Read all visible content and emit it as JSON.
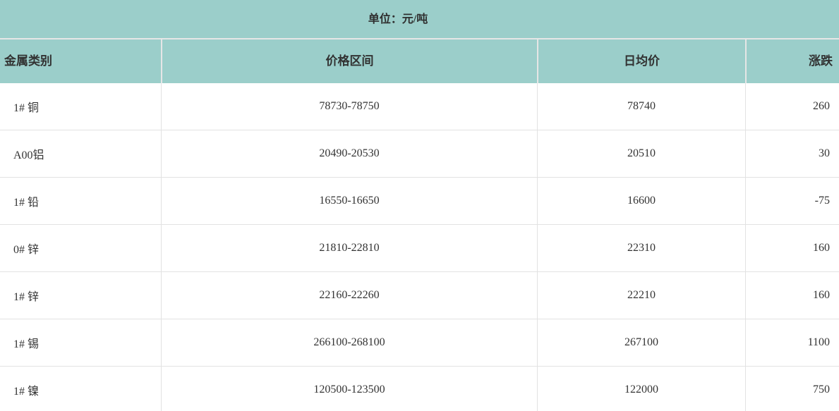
{
  "chart_data": {
    "type": "table",
    "title": "单位：元/吨",
    "columns": [
      "金属类别",
      "价格区间",
      "日均价",
      "涨跌"
    ],
    "rows": [
      [
        "1# 铜",
        "78730-78750",
        "78740",
        "260"
      ],
      [
        "A00铝",
        "20490-20530",
        "20510",
        "30"
      ],
      [
        "1# 铅",
        "16550-16650",
        "16600",
        "-75"
      ],
      [
        "0# 锌",
        "21810-22810",
        "22310",
        "160"
      ],
      [
        "1# 锌",
        "22160-22260",
        "22210",
        "160"
      ],
      [
        "1# 锡",
        "266100-268100",
        "267100",
        "1100"
      ],
      [
        "1# 镍",
        "120500-123500",
        "122000",
        "750"
      ]
    ],
    "column_alignment": [
      "left",
      "center",
      "center",
      "right"
    ],
    "grid": "on",
    "legend": "none"
  },
  "colors": {
    "header_bg": "#9bceca",
    "border": "#e2e2e2",
    "header_divider": "#e6e6e6",
    "text": "#333333"
  }
}
